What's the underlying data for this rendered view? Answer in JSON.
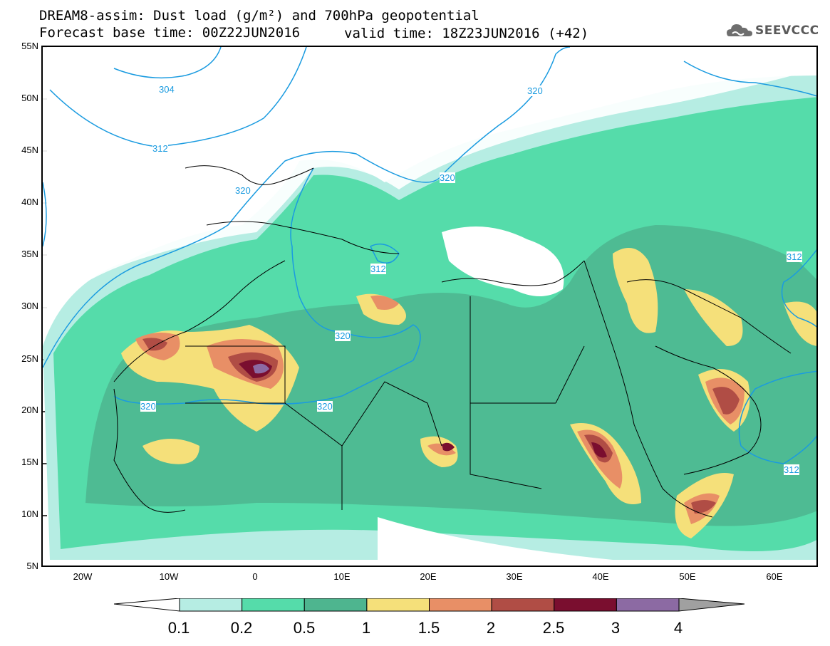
{
  "header": {
    "line1": "DREAM8-assim: Dust load (g/m²) and 700hPa geopotential",
    "line2a": "Forecast base time: 00Z22JUN2016",
    "line2b": "valid time: 18Z23JUN2016 (+42)",
    "logo_text": "SEEVCCC"
  },
  "map": {
    "lat_labels": [
      "55N",
      "50N",
      "45N",
      "40N",
      "35N",
      "30N",
      "25N",
      "20N",
      "15N",
      "10N",
      "5N"
    ],
    "lon_labels": [
      "20W",
      "10W",
      "0",
      "10E",
      "20E",
      "30E",
      "40E",
      "50E",
      "60E"
    ],
    "lat_range": [
      5,
      55
    ],
    "lon_range": [
      -25,
      65
    ],
    "contour_labels": [
      "304",
      "312",
      "320",
      "320",
      "320",
      "320",
      "312",
      "320",
      "312",
      "320",
      "312"
    ]
  },
  "legend": {
    "levels": [
      "0.1",
      "0.2",
      "0.5",
      "1",
      "1.5",
      "2",
      "2.5",
      "3",
      "4"
    ],
    "colors": [
      "#b6ede3",
      "#55dcaa",
      "#4eb58f",
      "#f5e07a",
      "#e88f66",
      "#b04d45",
      "#7a0e2f",
      "#8c6aa3"
    ],
    "left_arrow_color": "#ffffff",
    "right_arrow_color": "#a0a0a0"
  },
  "colors": {
    "geopotential_line": "#1a9be0",
    "border": "#000000"
  }
}
